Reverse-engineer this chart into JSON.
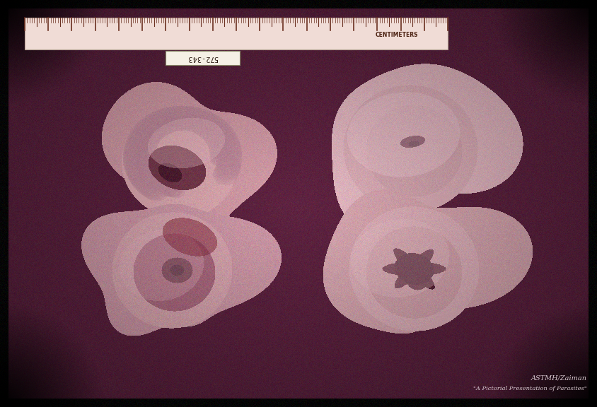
{
  "figsize": [
    8.44,
    5.76
  ],
  "dpi": 100,
  "bg_outer": "#0a0508",
  "bg_slide_r": 95,
  "bg_slide_g": 35,
  "bg_slide_b": 65,
  "ruler_color": "#f0e8d8",
  "ruler_text": "CENTIMETERS",
  "slide_label": "572-343",
  "attribution_line1": "ASTMH/Zaiman",
  "attribution_line2": "\"A Pictorial Presentation of Parasites\"",
  "attribution_color": "#d8c8d0",
  "tissue_base_r": 210,
  "tissue_base_g": 140,
  "tissue_base_b": 160
}
